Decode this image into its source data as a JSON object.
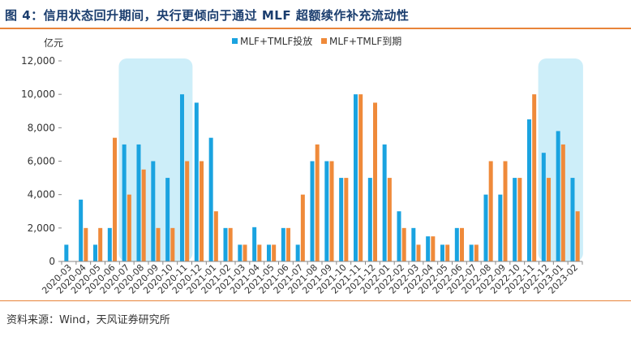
{
  "title": "图 4：信用状态回升期间，央行更倾向于通过 MLF 超额续作补充流动性",
  "source": "资料来源：Wind，天风证券研究所",
  "chart_data": {
    "type": "bar",
    "unit": "亿元",
    "categories": [
      "2020-03",
      "2020-04",
      "2020-05",
      "2020-06",
      "2020-07",
      "2020-08",
      "2020-09",
      "2020-10",
      "2020-11",
      "2020-12",
      "2021-01",
      "2021-02",
      "2021-03",
      "2021-04",
      "2021-05",
      "2021-06",
      "2021-07",
      "2021-08",
      "2021-09",
      "2021-10",
      "2021-11",
      "2021-12",
      "2022-01",
      "2022-02",
      "2022-03",
      "2022-04",
      "2022-05",
      "2022-06",
      "2022-07",
      "2022-08",
      "2022-09",
      "2022-10",
      "2022-11",
      "2022-12",
      "2023-01",
      "2023-02"
    ],
    "series": [
      {
        "name": "MLF+TMLF投放",
        "color": "#1aa3e0",
        "values": [
          1000,
          3700,
          1000,
          2000,
          7000,
          7000,
          6000,
          5000,
          10000,
          9500,
          7400,
          2000,
          1000,
          2050,
          1000,
          2000,
          1000,
          6000,
          6000,
          5000,
          10000,
          5000,
          7000,
          3000,
          2000,
          1500,
          1000,
          2000,
          1000,
          4000,
          4000,
          5000,
          8500,
          6500,
          7800,
          5000
        ]
      },
      {
        "name": "MLF+TMLF到期",
        "color": "#ef8a3a",
        "values": [
          0,
          2000,
          2000,
          7400,
          4000,
          5500,
          2000,
          2000,
          6000,
          6000,
          3000,
          2000,
          1000,
          1000,
          1000,
          2000,
          4000,
          7000,
          6000,
          5000,
          10000,
          9500,
          5000,
          2000,
          1000,
          1500,
          1000,
          2000,
          1000,
          6000,
          6000,
          5000,
          10000,
          5000,
          7000,
          3000
        ]
      }
    ],
    "ylim": [
      0,
      12000
    ],
    "yticks": [
      0,
      2000,
      4000,
      6000,
      8000,
      10000,
      12000
    ],
    "ytick_labels": [
      "0",
      "2,000",
      "4,000",
      "6,000",
      "8,000",
      "10,000",
      "12,000"
    ],
    "highlight_ranges": [
      [
        "2020-07",
        "2020-11"
      ],
      [
        "2022-12",
        "2023-02"
      ]
    ],
    "highlight_color": "#cdeef9",
    "legend_position": "top-center",
    "grid": false
  }
}
